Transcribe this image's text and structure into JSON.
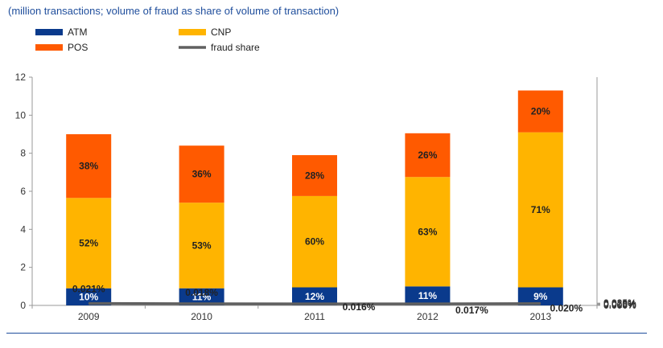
{
  "subtitle": "(million transactions; volume of fraud as share of volume of transaction)",
  "chart_data": {
    "type": "bar",
    "stacked": true,
    "categories": [
      "2009",
      "2010",
      "2011",
      "2012",
      "2013"
    ],
    "series": [
      {
        "name": "ATM",
        "color": "#0a3a8c",
        "values": [
          0.9,
          0.9,
          0.95,
          1.0,
          0.95
        ],
        "labels": [
          "10%",
          "11%",
          "12%",
          "11%",
          "9%"
        ]
      },
      {
        "name": "CNP",
        "color": "#ffb400",
        "values": [
          4.75,
          4.5,
          4.8,
          5.75,
          8.15
        ],
        "labels": [
          "52%",
          "53%",
          "60%",
          "63%",
          "71%"
        ]
      },
      {
        "name": "POS",
        "color": "#ff5a00",
        "values": [
          3.35,
          3.0,
          2.15,
          2.3,
          2.2
        ],
        "labels": [
          "38%",
          "36%",
          "28%",
          "26%",
          "20%"
        ]
      }
    ],
    "line": {
      "name": "fraud share",
      "color": "#606060",
      "values": [
        0.021,
        0.018,
        0.016,
        0.017,
        0.02
      ],
      "labels": [
        "0.021%",
        "0.018%",
        "0.016%",
        "0.017%",
        "0.020%"
      ]
    },
    "y_left": {
      "min": 0,
      "max": 12,
      "ticks": [
        "0",
        "2",
        "4",
        "6",
        "8",
        "10",
        "12"
      ]
    },
    "y_right": {
      "min": 0,
      "max": 0.025,
      "ticks": [
        "0.000%",
        "0.005%",
        "0.010%",
        "0.015%",
        "0.020%",
        "0.025%"
      ]
    },
    "legend": [
      "ATM",
      "CNP",
      "POS",
      "fraud share"
    ],
    "legend_position": "top-left",
    "grid": false
  }
}
